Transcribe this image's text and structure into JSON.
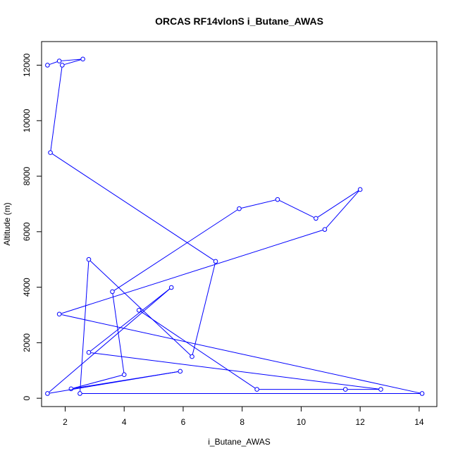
{
  "chart_data": {
    "type": "line",
    "title": "ORCAS RF14vlonS i_Butane_AWAS",
    "xlabel": "i_Butane_AWAS",
    "ylabel": "Altitude (m)",
    "xlim": [
      1.2,
      14.6
    ],
    "ylim": [
      -300,
      12850
    ],
    "xticks": [
      2,
      4,
      6,
      8,
      10,
      12,
      14
    ],
    "yticks": [
      0,
      2000,
      4000,
      6000,
      8000,
      10000,
      12000
    ],
    "grid": false,
    "legend": "none",
    "series": [
      {
        "color": "#0000ff",
        "marker": "open-circle",
        "points": [
          {
            "x": 1.4,
            "y": 12000
          },
          {
            "x": 1.8,
            "y": 12150
          },
          {
            "x": 2.6,
            "y": 12220
          },
          {
            "x": 1.9,
            "y": 12000
          },
          {
            "x": 1.5,
            "y": 8850
          },
          {
            "x": 7.1,
            "y": 4930
          },
          {
            "x": 6.3,
            "y": 1500
          },
          {
            "x": 2.8,
            "y": 5000
          },
          {
            "x": 2.5,
            "y": 170
          },
          {
            "x": 14.1,
            "y": 170
          },
          {
            "x": 1.8,
            "y": 3030
          },
          {
            "x": 10.8,
            "y": 6080
          },
          {
            "x": 12.0,
            "y": 7520
          },
          {
            "x": 10.5,
            "y": 6480
          },
          {
            "x": 9.2,
            "y": 7160
          },
          {
            "x": 7.9,
            "y": 6830
          },
          {
            "x": 3.6,
            "y": 3840
          },
          {
            "x": 4.0,
            "y": 850
          },
          {
            "x": 2.2,
            "y": 340
          },
          {
            "x": 5.9,
            "y": 970
          },
          {
            "x": 1.4,
            "y": 170
          },
          {
            "x": 5.6,
            "y": 3990
          },
          {
            "x": 2.8,
            "y": 1650
          },
          {
            "x": 12.7,
            "y": 320
          },
          {
            "x": 11.5,
            "y": 320
          },
          {
            "x": 8.5,
            "y": 320
          },
          {
            "x": 4.5,
            "y": 3170
          }
        ]
      }
    ]
  }
}
